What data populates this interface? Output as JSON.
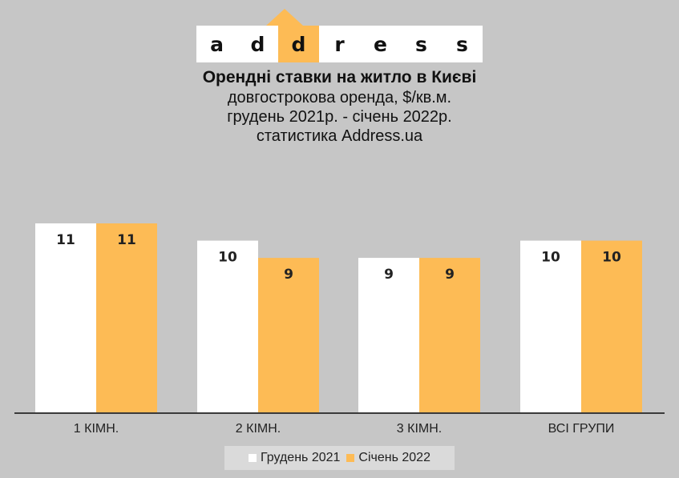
{
  "logo": {
    "letters": [
      "a",
      "d",
      "d",
      "r",
      "e",
      "s",
      "s"
    ],
    "highlight_index": 2,
    "accent": "#fdbb55"
  },
  "header": {
    "title": "Орендні ставки на житло в Києві",
    "subtitle_1": "довгострокова оренда, $/кв.м.",
    "subtitle_2": "грудень 2021р. - січень 2022р.",
    "subtitle_3": "статистика  Address.ua"
  },
  "chart_data": {
    "type": "bar",
    "categories": [
      "1 КІМН.",
      "2 КІМН.",
      "3 КІМН.",
      "ВСІ ГРУПИ"
    ],
    "series": [
      {
        "name": "Грудень 2021",
        "values": [
          11,
          10,
          9,
          10
        ],
        "color": "#ffffff"
      },
      {
        "name": "Січень 2022",
        "values": [
          11,
          9,
          9,
          10
        ],
        "color": "#fdbb55"
      }
    ],
    "ylim": [
      0,
      11
    ],
    "grid": false,
    "legend": "bottom",
    "data_labels": true
  }
}
